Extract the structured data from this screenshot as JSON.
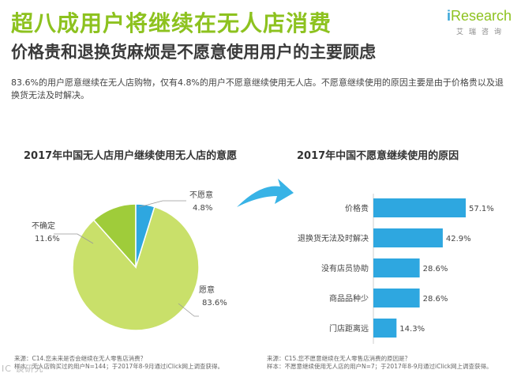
{
  "header": {
    "title": "超八成用户将继续在无人店消费",
    "subtitle": "价格贵和退换货麻烦是不愿意使用用户的主要顾虑",
    "description": "83.6%的用户愿意继续在无人店购物，仅有4.8%的用户不愿意继续使用无人店。不愿意继续使用的原因主要是由于价格贵以及退换货无法及时解决。"
  },
  "logo": {
    "brand_i": "i",
    "brand_rest": "Research",
    "subtitle": "艾瑞咨询"
  },
  "colors": {
    "green": "#8dc21f",
    "light_green": "#c9e06a",
    "mid_green": "#9fcc3a",
    "blue": "#2ea7e0",
    "arrow": "#38b3e6"
  },
  "chart_data": [
    {
      "type": "pie",
      "title": "2017年中国无人店用户继续使用无人店的意愿",
      "slices": [
        {
          "label": "愿意",
          "value": 83.6,
          "value_label": "83.6%",
          "color": "#c9e06a"
        },
        {
          "label": "不确定",
          "value": 11.6,
          "value_label": "11.6%",
          "color": "#9fcc3a"
        },
        {
          "label": "不愿意",
          "value": 4.8,
          "value_label": "4.8%",
          "color": "#2ea7e0"
        }
      ]
    },
    {
      "type": "bar",
      "orientation": "horizontal",
      "title": "2017年中国不愿意继续使用的原因",
      "categories": [
        "价格贵",
        "退换货无法及时解决",
        "没有店员协助",
        "商品品种少",
        "门店距离远"
      ],
      "values": [
        57.1,
        42.9,
        28.6,
        28.6,
        14.3
      ],
      "value_labels": [
        "57.1%",
        "42.9%",
        "28.6%",
        "28.6%",
        "14.3%"
      ],
      "xlim": [
        0,
        60
      ],
      "color": "#2ea7e0"
    }
  ],
  "footnotes": {
    "left": [
      "来源：C14.您未来是否会继续在无人零售店消费？",
      "样本：无人店购买过的用户N=144；于2017年8-9月通过iClick网上调查获得。"
    ],
    "right": [
      "来源：C15.您不愿意继续在无人零售店消费的原因是？",
      "样本：不愿意继续使用无人店的用户N=7；于2017年8-9月通过iClick网上调查获得。"
    ]
  },
  "watermark": "IC 谈研究"
}
